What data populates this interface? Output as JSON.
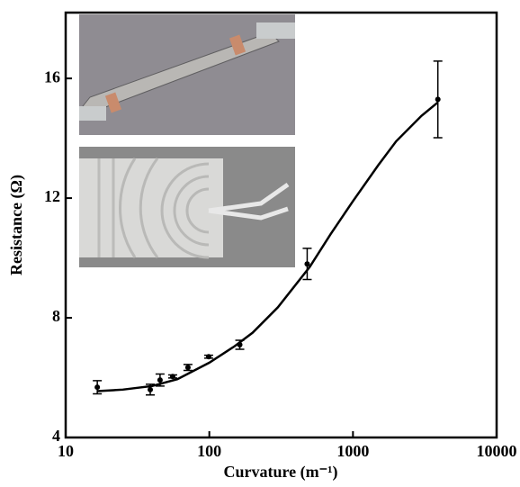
{
  "chart_data": {
    "type": "scatter",
    "x_label": "Curvature (m⁻¹)",
    "y_label": "Resistance (Ω)",
    "x": [
      16.6,
      38.8,
      45.4,
      55.6,
      71,
      99,
      163,
      480,
      3900
    ],
    "values": [
      5.68,
      5.6,
      5.92,
      6.04,
      6.34,
      6.7,
      7.1,
      9.8,
      15.3
    ],
    "errors": [
      0.22,
      0.18,
      0.2,
      0.05,
      0.1,
      0.05,
      0.15,
      0.52,
      1.28
    ],
    "fit_x": [
      16.6,
      25,
      40,
      60,
      100,
      150,
      200,
      300,
      500,
      700,
      1000,
      1500,
      2000,
      3000,
      3900
    ],
    "fit_values": [
      5.55,
      5.6,
      5.72,
      5.95,
      6.5,
      7.05,
      7.5,
      8.35,
      9.7,
      10.8,
      11.9,
      13.1,
      13.9,
      14.75,
      15.2
    ],
    "color": "#000000",
    "xscale": "log",
    "xlim": [
      10,
      10000
    ],
    "xticks": [
      10,
      100,
      1000,
      10000
    ],
    "ylim": [
      4,
      18.2
    ],
    "yticks": [
      4,
      8,
      12,
      16
    ]
  }
}
